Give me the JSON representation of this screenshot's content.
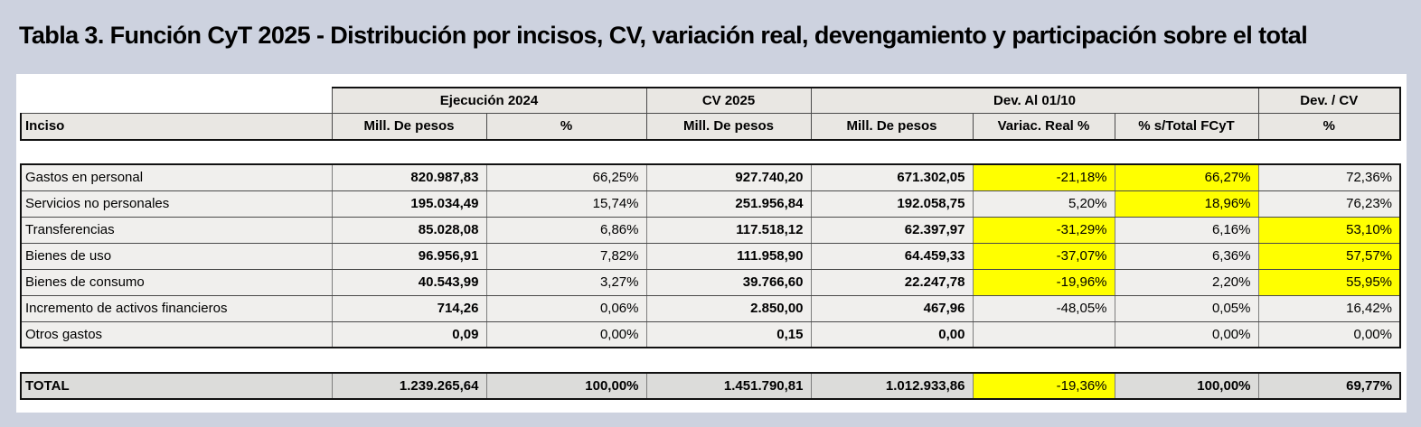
{
  "colors": {
    "page_background": "#cdd2df",
    "sheet_background": "#ffffff",
    "header_cell_background": "#e9e7e3",
    "data_cell_background": "#f0efed",
    "total_row_background": "#dcdcda",
    "highlight": "#ffff00"
  },
  "chart_data": {
    "type": "table",
    "title": "Tabla 3. Función CyT 2025 - Distribución por incisos, CV, variación real, devengamiento y participación sobre el total",
    "column_groups": [
      {
        "label": "",
        "span": 1
      },
      {
        "label": "Ejecución 2024",
        "span": 2
      },
      {
        "label": "CV 2025",
        "span": 1
      },
      {
        "label": "Dev. Al 01/10",
        "span": 3
      },
      {
        "label": "Dev. / CV",
        "span": 1
      }
    ],
    "columns": [
      "Inciso",
      "Mill. De pesos",
      "%",
      "Mill. De pesos",
      "Mill. De pesos",
      "Variac. Real %",
      "% s/Total FCyT",
      "%"
    ],
    "bold_columns": [
      1,
      3,
      4
    ],
    "rows": [
      {
        "cells": [
          "Gastos en personal",
          "820.987,83",
          "66,25%",
          "927.740,20",
          "671.302,05",
          "-21,18%",
          "66,27%",
          "72,36%"
        ],
        "highlight": [
          5,
          6
        ]
      },
      {
        "cells": [
          "Servicios no personales",
          "195.034,49",
          "15,74%",
          "251.956,84",
          "192.058,75",
          "5,20%",
          "18,96%",
          "76,23%"
        ],
        "highlight": [
          6
        ]
      },
      {
        "cells": [
          "Transferencias",
          "85.028,08",
          "6,86%",
          "117.518,12",
          "62.397,97",
          "-31,29%",
          "6,16%",
          "53,10%"
        ],
        "highlight": [
          5,
          7
        ]
      },
      {
        "cells": [
          "Bienes de uso",
          "96.956,91",
          "7,82%",
          "111.958,90",
          "64.459,33",
          "-37,07%",
          "6,36%",
          "57,57%"
        ],
        "highlight": [
          5,
          7
        ]
      },
      {
        "cells": [
          "Bienes de consumo",
          "40.543,99",
          "3,27%",
          "39.766,60",
          "22.247,78",
          "-19,96%",
          "2,20%",
          "55,95%"
        ],
        "highlight": [
          5,
          7
        ]
      },
      {
        "cells": [
          "Incremento de activos financieros",
          "714,26",
          "0,06%",
          "2.850,00",
          "467,96",
          "-48,05%",
          "0,05%",
          "16,42%"
        ],
        "highlight": []
      },
      {
        "cells": [
          "Otros gastos",
          "0,09",
          "0,00%",
          "0,15",
          "0,00",
          "",
          "0,00%",
          "0,00%"
        ],
        "highlight": []
      }
    ],
    "total_row": {
      "cells": [
        "TOTAL",
        "1.239.265,64",
        "100,00%",
        "1.451.790,81",
        "1.012.933,86",
        "-19,36%",
        "100,00%",
        "69,77%"
      ],
      "highlight": [
        5
      ]
    }
  }
}
